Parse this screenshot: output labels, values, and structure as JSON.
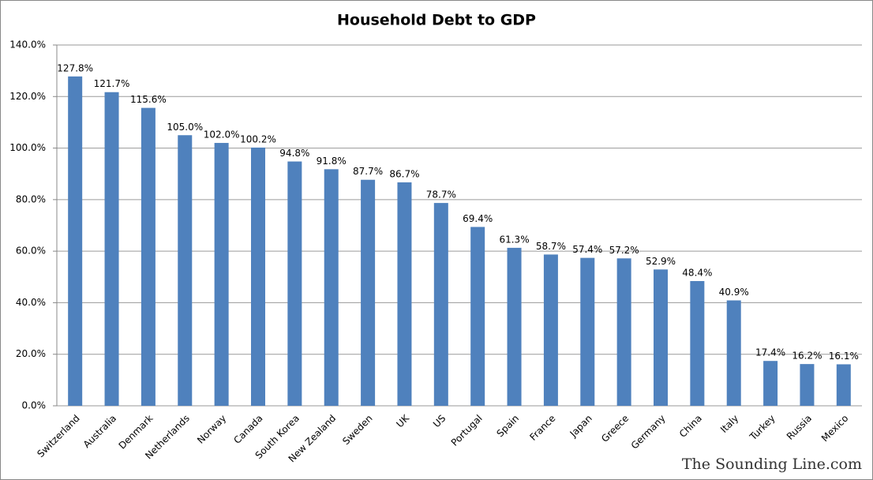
{
  "chart_data": {
    "type": "bar",
    "title": "Household Debt to GDP",
    "categories": [
      "Switzerland",
      "Australia",
      "Denmark",
      "Netherlands",
      "Norway",
      "Canada",
      "South Korea",
      "New Zealand",
      "Sweden",
      "UK",
      "US",
      "Portugal",
      "Spain",
      "France",
      "Japan",
      "Greece",
      "Germany",
      "China",
      "Italy",
      "Turkey",
      "Russia",
      "Mexico"
    ],
    "values": [
      127.8,
      121.7,
      115.6,
      105.0,
      102.0,
      100.2,
      94.8,
      91.8,
      87.7,
      86.7,
      78.7,
      69.4,
      61.3,
      58.7,
      57.4,
      57.2,
      52.9,
      48.4,
      40.9,
      17.4,
      16.2,
      16.1
    ],
    "value_labels": [
      "127.8%",
      "121.7%",
      "115.6%",
      "105.0%",
      "102.0%",
      "100.2%",
      "94.8%",
      "91.8%",
      "87.7%",
      "86.7%",
      "78.7%",
      "69.4%",
      "61.3%",
      "58.7%",
      "57.4%",
      "57.2%",
      "52.9%",
      "48.4%",
      "40.9%",
      "17.4%",
      "16.2%",
      "16.1%"
    ],
    "color": "#4f81bd",
    "ylim": [
      0,
      140
    ],
    "yticks": [
      {
        "value": 0,
        "label": "0.0%"
      },
      {
        "value": 20,
        "label": "20.0%"
      },
      {
        "value": 40,
        "label": "40.0%"
      },
      {
        "value": 60,
        "label": "60.0%"
      },
      {
        "value": 80,
        "label": "80.0%"
      },
      {
        "value": 100,
        "label": "100.0%"
      },
      {
        "value": 120,
        "label": "120.0%"
      },
      {
        "value": 140,
        "label": "140.0%"
      }
    ],
    "grid": true,
    "watermark": "The Sounding Line.com"
  }
}
